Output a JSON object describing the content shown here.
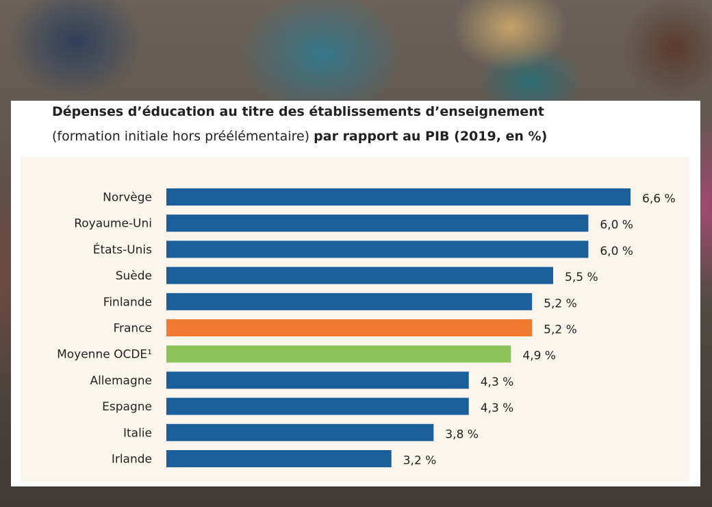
{
  "chart_data": {
    "type": "bar",
    "orientation": "horizontal",
    "title": "Dépenses d’éducation au titre des établissements d’enseignement",
    "subtitle_regular": "(formation initiale hors préélémentaire)",
    "subtitle_bold": "par rapport au PIB (2019, en %)",
    "categories": [
      "Norvège",
      "Royaume-Uni",
      "États-Unis",
      "Suède",
      "Finlande",
      "France",
      "Moyenne OCDE¹",
      "Allemagne",
      "Espagne",
      "Italie",
      "Irlande"
    ],
    "values": [
      6.6,
      6.0,
      6.0,
      5.5,
      5.2,
      5.2,
      4.9,
      4.3,
      4.3,
      3.8,
      3.2
    ],
    "value_labels": [
      "6,6 %",
      "6,0 %",
      "6,0 %",
      "5,5 %",
      "5,2 %",
      "5,2 %",
      "4,9 %",
      "4,3 %",
      "4,3 %",
      "3,8 %",
      "3,2 %"
    ],
    "xlim": [
      0,
      6.6
    ],
    "grid": false,
    "colors": {
      "default": "#1a5f9a",
      "France": "#f07a30",
      "Moyenne OCDE¹": "#8cc45a"
    }
  }
}
